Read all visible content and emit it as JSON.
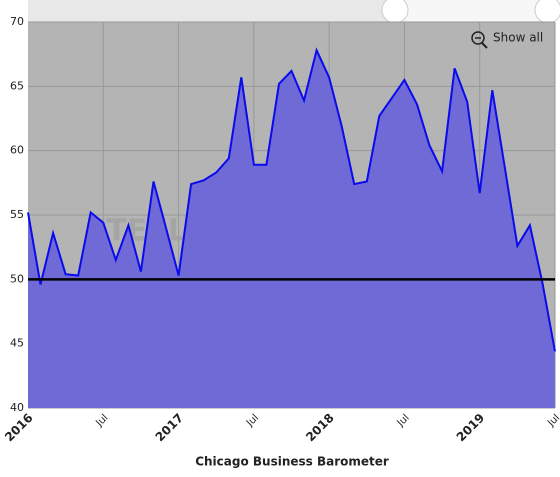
{
  "chart_data": {
    "type": "area",
    "title": "Chicago Business Barometer",
    "watermark": "STEEL MARKET UPDATE",
    "button": "Show all",
    "categories": [
      "2016",
      null,
      null,
      null,
      null,
      null,
      "Jul",
      null,
      null,
      null,
      null,
      null,
      "2017",
      null,
      null,
      null,
      null,
      null,
      "Jul",
      null,
      null,
      null,
      null,
      null,
      "2018",
      null,
      null,
      null,
      null,
      null,
      "Jul",
      null,
      null,
      null,
      null,
      null,
      "2019",
      null,
      null,
      null,
      null,
      null,
      "Jul"
    ],
    "values": [
      55.2,
      49.6,
      53.6,
      50.4,
      50.3,
      55.2,
      54.4,
      51.5,
      54.2,
      50.6,
      57.6,
      54.0,
      50.3,
      57.4,
      57.7,
      58.3,
      59.4,
      65.7,
      58.9,
      58.9,
      65.2,
      66.2,
      63.9,
      67.8,
      65.7,
      61.9,
      57.4,
      57.6,
      62.7,
      64.1,
      65.5,
      63.6,
      60.4,
      58.4,
      66.4,
      63.8,
      56.7,
      64.7,
      58.7,
      52.6,
      54.2,
      49.7,
      44.4
    ],
    "color": "#6f6ad6",
    "line_color": "#0a0aee",
    "reference_line": 50,
    "ylim": [
      40,
      70
    ],
    "yticks": [
      40,
      45,
      50,
      55,
      60,
      65,
      70
    ],
    "grid": true
  }
}
